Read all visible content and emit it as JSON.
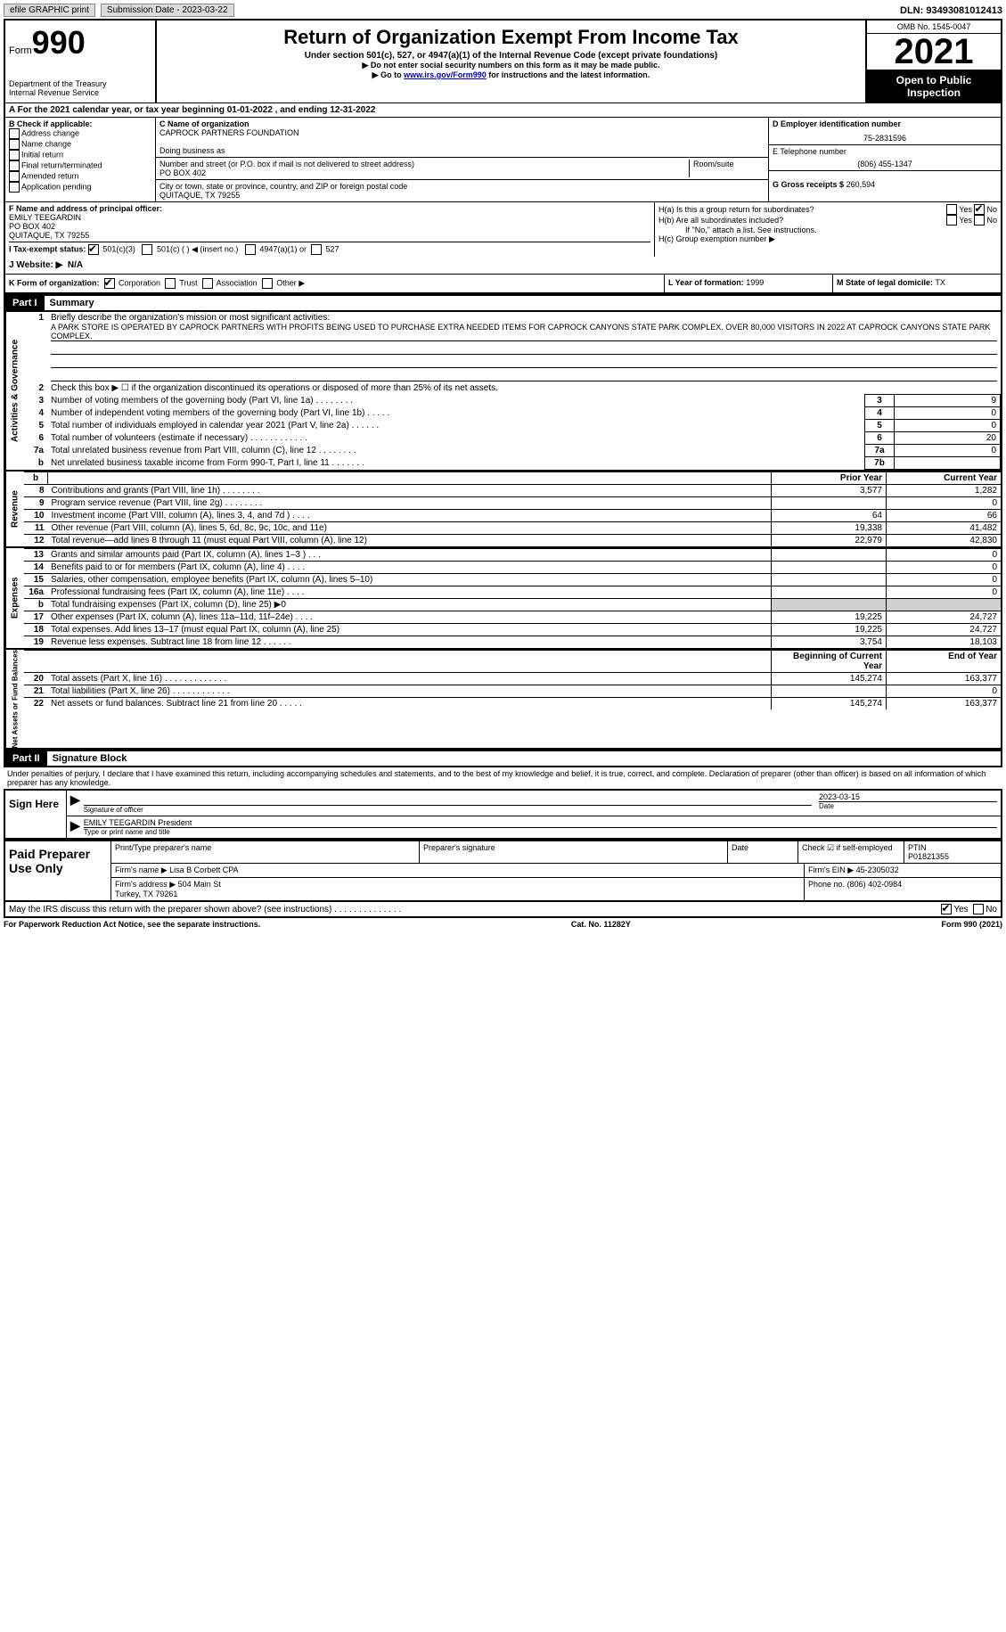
{
  "top_bar": {
    "efile_label": "efile GRAPHIC print",
    "submission_date_label": "Submission Date - 2023-03-22",
    "dln_label": "DLN: 93493081012413"
  },
  "header": {
    "form_label": "Form",
    "form_no": "990",
    "dept": "Department of the Treasury\nInternal Revenue Service",
    "title": "Return of Organization Exempt From Income Tax",
    "subtitle": "Under section 501(c), 527, or 4947(a)(1) of the Internal Revenue Code (except private foundations)",
    "note1": "▶ Do not enter social security numbers on this form as it may be made public.",
    "note2_pre": "▶ Go to ",
    "note2_link": "www.irs.gov/Form990",
    "note2_post": " for instructions and the latest information.",
    "omb": "OMB No. 1545-0047",
    "year": "2021",
    "open_public": "Open to Public Inspection"
  },
  "row_a": "A For the 2021 calendar year, or tax year beginning 01-01-2022    , and ending 12-31-2022",
  "section_b": {
    "label": "B Check if applicable:",
    "items": [
      "Address change",
      "Name change",
      "Initial return",
      "Final return/terminated",
      "Amended return",
      "Application pending"
    ]
  },
  "section_c": {
    "name_label": "C Name of organization",
    "name": "CAPROCK PARTNERS FOUNDATION",
    "dba_label": "Doing business as",
    "addr_label": "Number and street (or P.O. box if mail is not delivered to street address)",
    "room_label": "Room/suite",
    "addr": "PO BOX 402",
    "city_label": "City or town, state or province, country, and ZIP or foreign postal code",
    "city": "QUITAQUE, TX  79255"
  },
  "section_d": {
    "ein_label": "D Employer identification number",
    "ein": "75-2831596",
    "tel_label": "E Telephone number",
    "tel": "(806) 455-1347",
    "gross_label": "G Gross receipts $",
    "gross": "260,594"
  },
  "section_f": {
    "label": "F Name and address of principal officer:",
    "name": "EMILY TEEGARDIN",
    "addr1": "PO BOX 402",
    "addr2": "QUITAQUE, TX  79255"
  },
  "section_h": {
    "ha": "H(a)  Is this a group return for subordinates?",
    "hb": "H(b)  Are all subordinates included?",
    "hb_note": "If \"No,\" attach a list. See instructions.",
    "hc": "H(c)  Group exemption number ▶",
    "yes": "Yes",
    "no": "No"
  },
  "row_i": {
    "label": "I   Tax-exempt status:",
    "opts": [
      "501(c)(3)",
      "501(c) (  ) ◀ (insert no.)",
      "4947(a)(1) or",
      "527"
    ]
  },
  "row_j": {
    "label": "J  Website: ▶",
    "value": "N/A"
  },
  "row_k": {
    "label": "K Form of organization:",
    "opts": [
      "Corporation",
      "Trust",
      "Association",
      "Other ▶"
    ]
  },
  "row_l": {
    "label": "L Year of formation:",
    "value": "1999"
  },
  "row_m": {
    "label": "M State of legal domicile:",
    "value": "TX"
  },
  "part1": {
    "label": "Part I",
    "title": "Summary"
  },
  "summary": {
    "line1_label": "Briefly describe the organization's mission or most significant activities:",
    "line1_text": "A PARK STORE IS OPERATED BY CAPROCK PARTNERS WITH PROFITS BEING USED TO PURCHASE EXTRA NEEDED ITEMS FOR CAPROCK CANYONS STATE PARK COMPLEX. OVER 80,000 VISITORS IN 2022 AT CAPROCK CANYONS STATE PARK COMPLEX.",
    "line2": "Check this box ▶ ☐  if the organization discontinued its operations or disposed of more than 25% of its net assets.",
    "line3": "Number of voting members of the governing body (Part VI, line 1a)   .    .    .    .    .    .    .    .",
    "line4": "Number of independent voting members of the governing body (Part VI, line 1b)   .    .    .    .    .",
    "line5": "Total number of individuals employed in calendar year 2021 (Part V, line 2a)   .    .    .    .    .    .",
    "line6": "Total number of volunteers (estimate if necessary)    .    .    .    .    .    .    .    .    .    .    .    .",
    "line7a": "Total unrelated business revenue from Part VIII, column (C), line 12    .    .    .    .    .    .    .    .",
    "line7b": "Net unrelated business taxable income from Form 990-T, Part I, line 11   .    .    .    .    .    .    .",
    "val3": "9",
    "val4": "0",
    "val5": "0",
    "val6": "20",
    "val7a": "0",
    "val7b": ""
  },
  "revenue": {
    "prior_label": "Prior Year",
    "current_label": "Current Year",
    "rows": [
      {
        "n": "8",
        "d": "Contributions and grants (Part VIII, line 1h)   .    .    .    .    .    .    .    .",
        "p": "3,577",
        "c": "1,282"
      },
      {
        "n": "9",
        "d": "Program service revenue (Part VIII, line 2g)   .    .    .    .    .    .    .    .",
        "p": "",
        "c": "0"
      },
      {
        "n": "10",
        "d": "Investment income (Part VIII, column (A), lines 3, 4, and 7d )   .    .    .    .",
        "p": "64",
        "c": "66"
      },
      {
        "n": "11",
        "d": "Other revenue (Part VIII, column (A), lines 5, 6d, 8c, 9c, 10c, and 11e)",
        "p": "19,338",
        "c": "41,482"
      },
      {
        "n": "12",
        "d": "Total revenue—add lines 8 through 11 (must equal Part VIII, column (A), line 12)",
        "p": "22,979",
        "c": "42,830"
      }
    ]
  },
  "expenses": {
    "rows": [
      {
        "n": "13",
        "d": "Grants and similar amounts paid (Part IX, column (A), lines 1–3 )   .    .    .",
        "p": "",
        "c": "0"
      },
      {
        "n": "14",
        "d": "Benefits paid to or for members (Part IX, column (A), line 4)   .    .    .    .",
        "p": "",
        "c": "0"
      },
      {
        "n": "15",
        "d": "Salaries, other compensation, employee benefits (Part IX, column (A), lines 5–10)",
        "p": "",
        "c": "0"
      },
      {
        "n": "16a",
        "d": "Professional fundraising fees (Part IX, column (A), line 11e)   .    .    .    .",
        "p": "",
        "c": "0"
      },
      {
        "n": "b",
        "d": "Total fundraising expenses (Part IX, column (D), line 25) ▶0",
        "p": "grey",
        "c": "grey"
      },
      {
        "n": "17",
        "d": "Other expenses (Part IX, column (A), lines 11a–11d, 11f–24e)   .    .    .    .",
        "p": "19,225",
        "c": "24,727"
      },
      {
        "n": "18",
        "d": "Total expenses. Add lines 13–17 (must equal Part IX, column (A), line 25)",
        "p": "19,225",
        "c": "24,727"
      },
      {
        "n": "19",
        "d": "Revenue less expenses. Subtract line 18 from line 12   .    .    .    .    .    .",
        "p": "3,754",
        "c": "18,103"
      }
    ]
  },
  "netassets": {
    "begin_label": "Beginning of Current Year",
    "end_label": "End of Year",
    "rows": [
      {
        "n": "20",
        "d": "Total assets (Part X, line 16)   .    .    .    .    .    .    .    .    .    .    .    .    .",
        "p": "145,274",
        "c": "163,377"
      },
      {
        "n": "21",
        "d": "Total liabilities (Part X, line 26)   .    .    .    .    .    .    .    .    .    .    .    .",
        "p": "",
        "c": "0"
      },
      {
        "n": "22",
        "d": "Net assets or fund balances. Subtract line 21 from line 20   .    .    .    .    .",
        "p": "145,274",
        "c": "163,377"
      }
    ]
  },
  "part2": {
    "label": "Part II",
    "title": "Signature Block"
  },
  "sig": {
    "penalty": "Under penalties of perjury, I declare that I have examined this return, including accompanying schedules and statements, and to the best of my knowledge and belief, it is true, correct, and complete. Declaration of preparer (other than officer) is based on all information of which preparer has any knowledge.",
    "sign_here": "Sign Here",
    "sig_officer": "Signature of officer",
    "date": "2023-03-15",
    "date_label": "Date",
    "name": "EMILY TEEGARDIN  President",
    "name_label": "Type or print name and title"
  },
  "paid": {
    "label": "Paid Preparer Use Only",
    "print_name_label": "Print/Type preparer's name",
    "prep_sig_label": "Preparer's signature",
    "date_label": "Date",
    "check_label": "Check ☑ if self-employed",
    "ptin_label": "PTIN",
    "ptin": "P01821355",
    "firm_name_label": "Firm's name    ▶",
    "firm_name": "Lisa B Corbett CPA",
    "firm_ein_label": "Firm's EIN ▶",
    "firm_ein": "45-2305032",
    "firm_addr_label": "Firm's address ▶",
    "firm_addr": "504 Main St\nTurkey, TX  79261",
    "phone_label": "Phone no.",
    "phone": "(806) 402-0984"
  },
  "may_irs": {
    "text": "May the IRS discuss this return with the preparer shown above? (see instructions)   .    .    .    .    .    .    .    .    .    .    .    .    .    .",
    "yes": "Yes",
    "no": "No"
  },
  "footer": {
    "left": "For Paperwork Reduction Act Notice, see the separate instructions.",
    "mid": "Cat. No. 11282Y",
    "right": "Form 990 (2021)"
  },
  "vtabs": {
    "gov": "Activities & Governance",
    "rev": "Revenue",
    "exp": "Expenses",
    "net": "Net Assets or Fund Balances"
  }
}
